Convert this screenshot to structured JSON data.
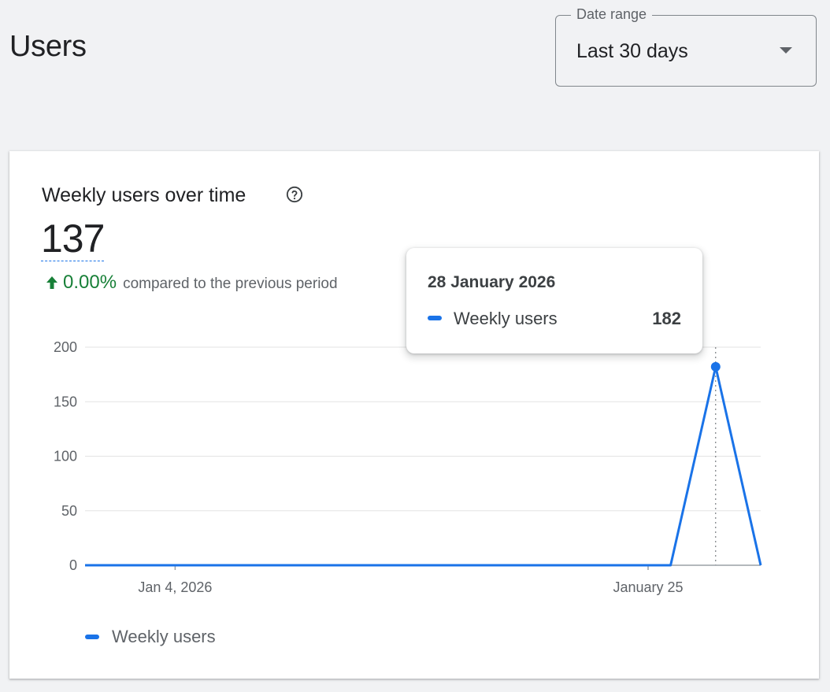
{
  "page": {
    "title": "Users"
  },
  "date_range": {
    "label": "Date range",
    "value": "Last 30 days"
  },
  "card": {
    "title": "Weekly users over time",
    "metric_value": "137",
    "change_pct": "0.00%",
    "change_text": "compared to the previous period"
  },
  "tooltip": {
    "date": "28 January 2026",
    "series": "Weekly users",
    "value": "182"
  },
  "legend": {
    "label": "Weekly users"
  },
  "colors": {
    "series": "#1a73e8",
    "positive": "#188038"
  },
  "chart_data": {
    "type": "line",
    "ylim": [
      0,
      200
    ],
    "yticks": [
      "0",
      "50",
      "100",
      "150",
      "200"
    ],
    "xticks": [
      {
        "label": "Jan 4, 2026",
        "date": "2026-01-04"
      },
      {
        "label": "January 25",
        "date": "2026-01-25"
      }
    ],
    "x_start": "2025-12-31",
    "x_end": "2026-01-30",
    "series": [
      {
        "name": "Weekly users",
        "points": [
          {
            "x": "2025-12-31",
            "y": 0
          },
          {
            "x": "2026-01-26",
            "y": 0
          },
          {
            "x": "2026-01-28",
            "y": 182
          },
          {
            "x": "2026-01-30",
            "y": 0
          }
        ]
      }
    ],
    "highlight": {
      "x": "2026-01-28",
      "y": 182
    }
  }
}
